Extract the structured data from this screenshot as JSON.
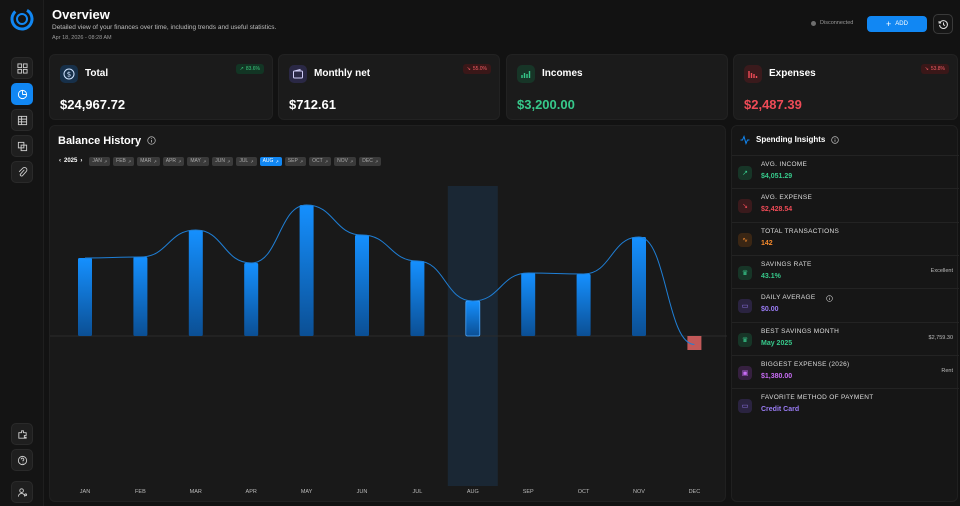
{
  "header": {
    "title": "Overview",
    "subtitle": "Detailed view of your finances over time, including trends and useful statistics.",
    "date": "Apr 18, 2026 - 08:28 AM",
    "status": "Disconnected",
    "add_label": "ADD"
  },
  "cards": [
    {
      "label": "Total",
      "value": "$24,967.72",
      "badge": "83.6%",
      "trend": "up",
      "value_color": "#ffffff"
    },
    {
      "label": "Monthly net",
      "value": "$712.61",
      "badge": "55.0%",
      "trend": "down",
      "value_color": "#ffffff"
    },
    {
      "label": "Incomes",
      "value": "$3,200.00",
      "badge": "",
      "trend": "",
      "value_color": "#37c98b"
    },
    {
      "label": "Expenses",
      "value": "$2,487.39",
      "badge": "53.8%",
      "trend": "down",
      "value_color": "#ef4b57"
    }
  ],
  "balance": {
    "title": "Balance History",
    "year": "2025",
    "months": [
      "JAN",
      "FEB",
      "MAR",
      "APR",
      "MAY",
      "JUN",
      "JUL",
      "AUG",
      "SEP",
      "OCT",
      "NOV",
      "DEC"
    ],
    "selected_month": "AUG"
  },
  "chart_data": {
    "type": "bar",
    "categories": [
      "JAN",
      "FEB",
      "MAR",
      "APR",
      "MAY",
      "JUN",
      "JUL",
      "AUG",
      "SEP",
      "OCT",
      "NOV",
      "DEC"
    ],
    "values": [
      78,
      79,
      106,
      73,
      131,
      101,
      75,
      35,
      63,
      62,
      99,
      -14
    ],
    "title": "Balance History",
    "xlabel": "",
    "ylabel": "",
    "ylim": [
      -150,
      150
    ],
    "highlight": "AUG",
    "grid": false,
    "colors": {
      "positive": "#1187f3",
      "negative": "#e06565",
      "line": "#1f7fd6"
    }
  },
  "insights": {
    "title": "Spending Insights",
    "rows": [
      {
        "label": "AVG. INCOME",
        "value": "$4,051.29",
        "right": "",
        "color": "#37c98b",
        "icon": "arrow-up-right-icon",
        "icon_bg": "#173527"
      },
      {
        "label": "AVG. EXPENSE",
        "value": "$2,428.54",
        "right": "",
        "color": "#ef4b57",
        "icon": "arrow-down-right-icon",
        "icon_bg": "#3a1a1c"
      },
      {
        "label": "TOTAL TRANSACTIONS",
        "value": "142",
        "right": "",
        "color": "#f58a2d",
        "icon": "activity-icon",
        "icon_bg": "#3a2614"
      },
      {
        "label": "SAVINGS RATE",
        "value": "43.1%",
        "right": "Excellent",
        "color": "#37c98b",
        "icon": "trophy-icon",
        "icon_bg": "#173527"
      },
      {
        "label": "DAILY AVERAGE",
        "value": "$0.00",
        "right": "",
        "color": "#9a7cf5",
        "icon": "card-icon",
        "icon_bg": "#2a2340"
      },
      {
        "label": "BEST SAVINGS MONTH",
        "value": "May 2025",
        "right": "$2,759.30",
        "color": "#37c98b",
        "icon": "trophy-icon",
        "icon_bg": "#173527"
      },
      {
        "label": "BIGGEST EXPENSE (2026)",
        "value": "$1,380.00",
        "right": "Rent",
        "color": "#c86cf5",
        "icon": "wallet-icon",
        "icon_bg": "#35203f"
      },
      {
        "label": "FAVORITE METHOD OF PAYMENT",
        "value": "Credit Card",
        "right": "",
        "color": "#9a7cf5",
        "icon": "card-icon",
        "icon_bg": "#2a2340"
      }
    ]
  }
}
